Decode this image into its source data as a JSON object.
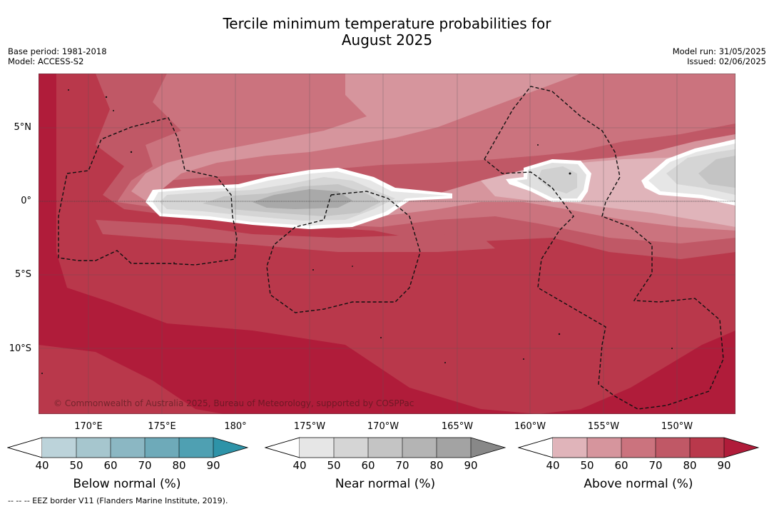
{
  "title_line1": "Tercile minimum temperature probabilities for",
  "title_line2": "August 2025",
  "meta_left": {
    "base_period": "Base period: 1981-2018",
    "model": "Model: ACCESS-S2"
  },
  "meta_right": {
    "model_run": "Model run: 31/05/2025",
    "issued": "Issued: 02/06/2025"
  },
  "lat_labels": [
    "5°N",
    "0°",
    "5°S",
    "10°S"
  ],
  "lon_labels": [
    "170°E",
    "175°E",
    "180°",
    "175°W",
    "170°W",
    "165°W",
    "160°W",
    "155°W",
    "150°W"
  ],
  "copyright": "© Commonwealth of Australia 2025, Bureau of Meteorology, supported by COSPPac",
  "colorbars": [
    {
      "label": "Below normal (%)",
      "ticks": [
        "40",
        "50",
        "60",
        "70",
        "80",
        "90"
      ],
      "colors": [
        "#bcd3da",
        "#a6c6ce",
        "#8bb7c3",
        "#6eaab9",
        "#4fa0b2",
        "#2e93a8"
      ]
    },
    {
      "label": "Near normal (%)",
      "ticks": [
        "40",
        "50",
        "60",
        "70",
        "80",
        "90"
      ],
      "colors": [
        "#e6e6e6",
        "#d5d5d5",
        "#c4c4c4",
        "#b4b4b4",
        "#a3a3a3",
        "#888888"
      ]
    },
    {
      "label": "Above normal (%)",
      "ticks": [
        "40",
        "50",
        "60",
        "70",
        "80",
        "90"
      ],
      "colors": [
        "#e0b4ba",
        "#d6959d",
        "#cb737e",
        "#c05866",
        "#b9384b",
        "#b01c3a"
      ]
    }
  ],
  "footnote": "-- -- -- EEZ border V11 (Flanders Marine Institute, 2019)."
}
